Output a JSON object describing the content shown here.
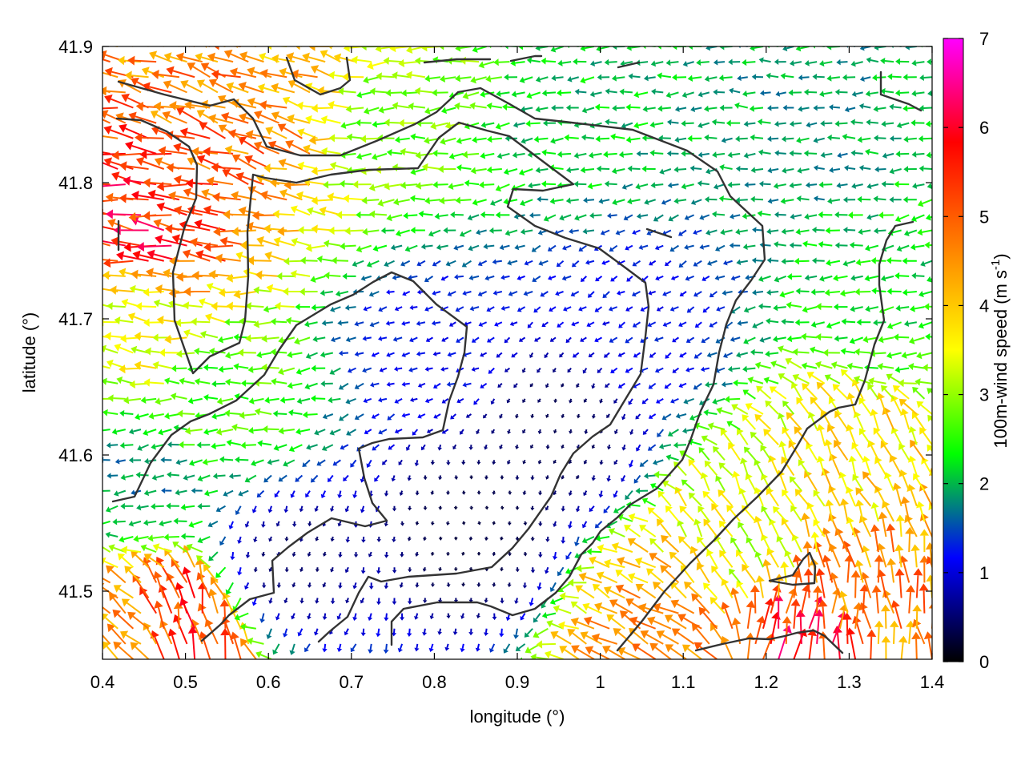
{
  "chart_data": {
    "type": "vector-field",
    "xlabel": "longitude (°)",
    "ylabel": "latitude (°)",
    "colorbar_label": "100m-wind speed (m s",
    "colorbar_label_sup": "-1",
    "colorbar_label_end": ")",
    "xlim": [
      0.4,
      1.4
    ],
    "ylim": [
      41.45,
      41.9
    ],
    "x_ticks": [
      "0.4",
      "0.5",
      "0.6",
      "0.7",
      "0.8",
      "0.9",
      "1",
      "1.1",
      "1.2",
      "1.3",
      "1.4"
    ],
    "y_ticks": [
      "41.5",
      "41.6",
      "41.7",
      "41.8",
      "41.9"
    ],
    "colorbar_ticks": [
      "0",
      "1",
      "2",
      "3",
      "4",
      "5",
      "6",
      "7"
    ],
    "colorbar_range": [
      0,
      7
    ],
    "colormap": [
      "#000000",
      "#0000ff",
      "#00ff00",
      "#ffff00",
      "#ff8000",
      "#ff0000",
      "#ff00ff"
    ],
    "wind_regions": [
      {
        "lon": 0.47,
        "lat": 41.77,
        "speed": 5.6,
        "dir_deg": 172
      },
      {
        "lon": 0.58,
        "lat": 41.85,
        "speed": 4.8,
        "dir_deg": 160
      },
      {
        "lon": 0.65,
        "lat": 41.88,
        "speed": 4.2,
        "dir_deg": 165
      },
      {
        "lon": 0.45,
        "lat": 41.7,
        "speed": 3.6,
        "dir_deg": 170
      },
      {
        "lon": 0.55,
        "lat": 41.64,
        "speed": 2.6,
        "dir_deg": 180
      },
      {
        "lon": 0.75,
        "lat": 41.85,
        "speed": 2.8,
        "dir_deg": 185
      },
      {
        "lon": 1.0,
        "lat": 41.85,
        "speed": 2.1,
        "dir_deg": 185
      },
      {
        "lon": 1.25,
        "lat": 41.83,
        "speed": 1.9,
        "dir_deg": 180
      },
      {
        "lon": 0.85,
        "lat": 41.55,
        "speed": 0.3,
        "dir_deg": 270
      },
      {
        "lon": 0.95,
        "lat": 41.62,
        "speed": 0.4,
        "dir_deg": 250
      },
      {
        "lon": 0.62,
        "lat": 41.52,
        "speed": 0.5,
        "dir_deg": 260
      },
      {
        "lon": 0.8,
        "lat": 41.68,
        "speed": 1.2,
        "dir_deg": 200
      },
      {
        "lon": 1.05,
        "lat": 41.7,
        "speed": 1.2,
        "dir_deg": 210
      },
      {
        "lon": 1.18,
        "lat": 41.53,
        "speed": 3.4,
        "dir_deg": 120
      },
      {
        "lon": 1.32,
        "lat": 41.58,
        "speed": 3.8,
        "dir_deg": 115
      },
      {
        "lon": 1.35,
        "lat": 41.5,
        "speed": 4.6,
        "dir_deg": 100
      },
      {
        "lon": 1.08,
        "lat": 41.47,
        "speed": 4.4,
        "dir_deg": 150
      },
      {
        "lon": 0.43,
        "lat": 41.47,
        "speed": 4.3,
        "dir_deg": 140
      },
      {
        "lon": 0.5,
        "lat": 41.47,
        "speed": 5.5,
        "dir_deg": 100
      },
      {
        "lon": 1.23,
        "lat": 41.46,
        "speed": 5.6,
        "dir_deg": 80
      },
      {
        "lon": 1.37,
        "lat": 41.72,
        "speed": 2.3,
        "dir_deg": 190
      },
      {
        "lon": 0.45,
        "lat": 41.58,
        "speed": 1.8,
        "dir_deg": 190
      }
    ],
    "grid": false
  }
}
